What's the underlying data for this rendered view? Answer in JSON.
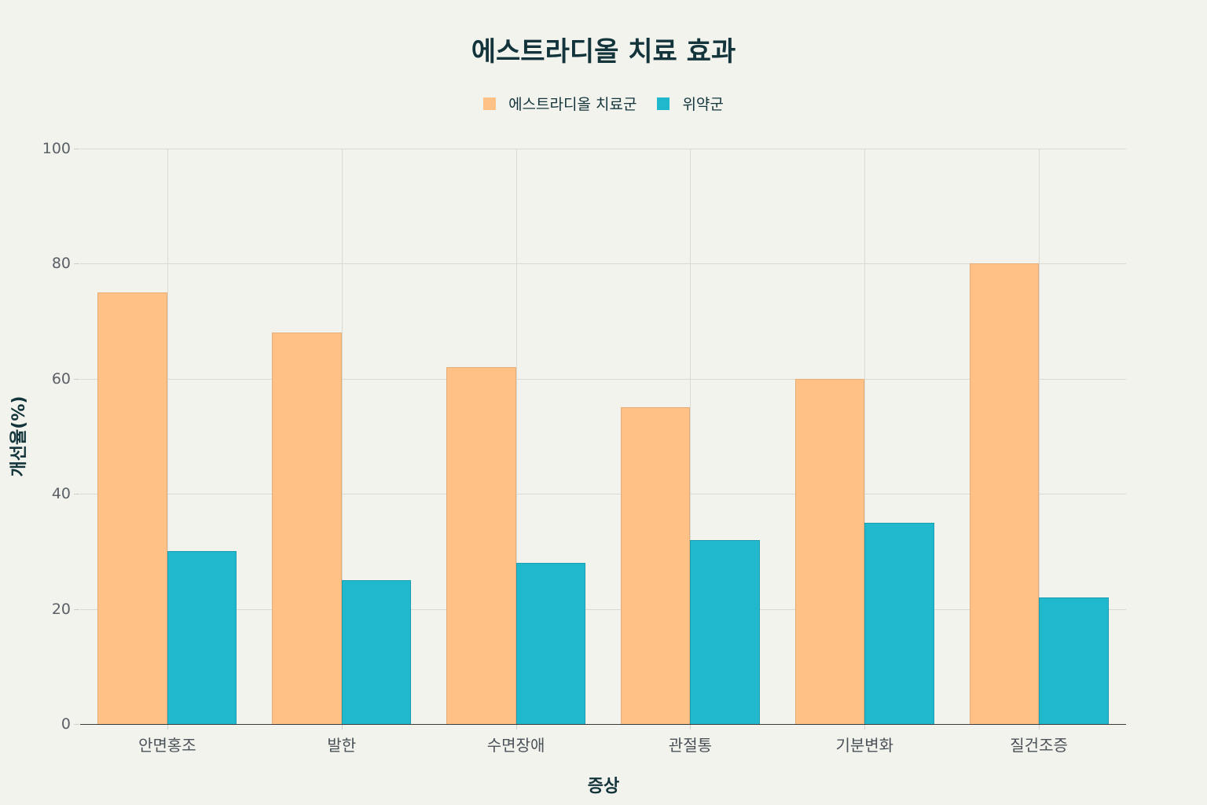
{
  "chart_data": {
    "type": "bar",
    "title": "에스트라디올 치료 효과",
    "xlabel": "증상",
    "ylabel": "개선율(%)",
    "ylim": [
      0,
      100
    ],
    "yticks": [
      0,
      20,
      40,
      60,
      80,
      100
    ],
    "grid": true,
    "legend_position": "top",
    "categories": [
      "안면홍조",
      "발한",
      "수면장애",
      "관절통",
      "기분변화",
      "질건조증"
    ],
    "series": [
      {
        "name": "에스트라디올 치료군",
        "color": "#ffc185",
        "values": [
          75,
          68,
          62,
          55,
          60,
          80
        ]
      },
      {
        "name": "위약군",
        "color": "#1fb8cd",
        "values": [
          30,
          25,
          28,
          32,
          35,
          22
        ]
      }
    ]
  }
}
